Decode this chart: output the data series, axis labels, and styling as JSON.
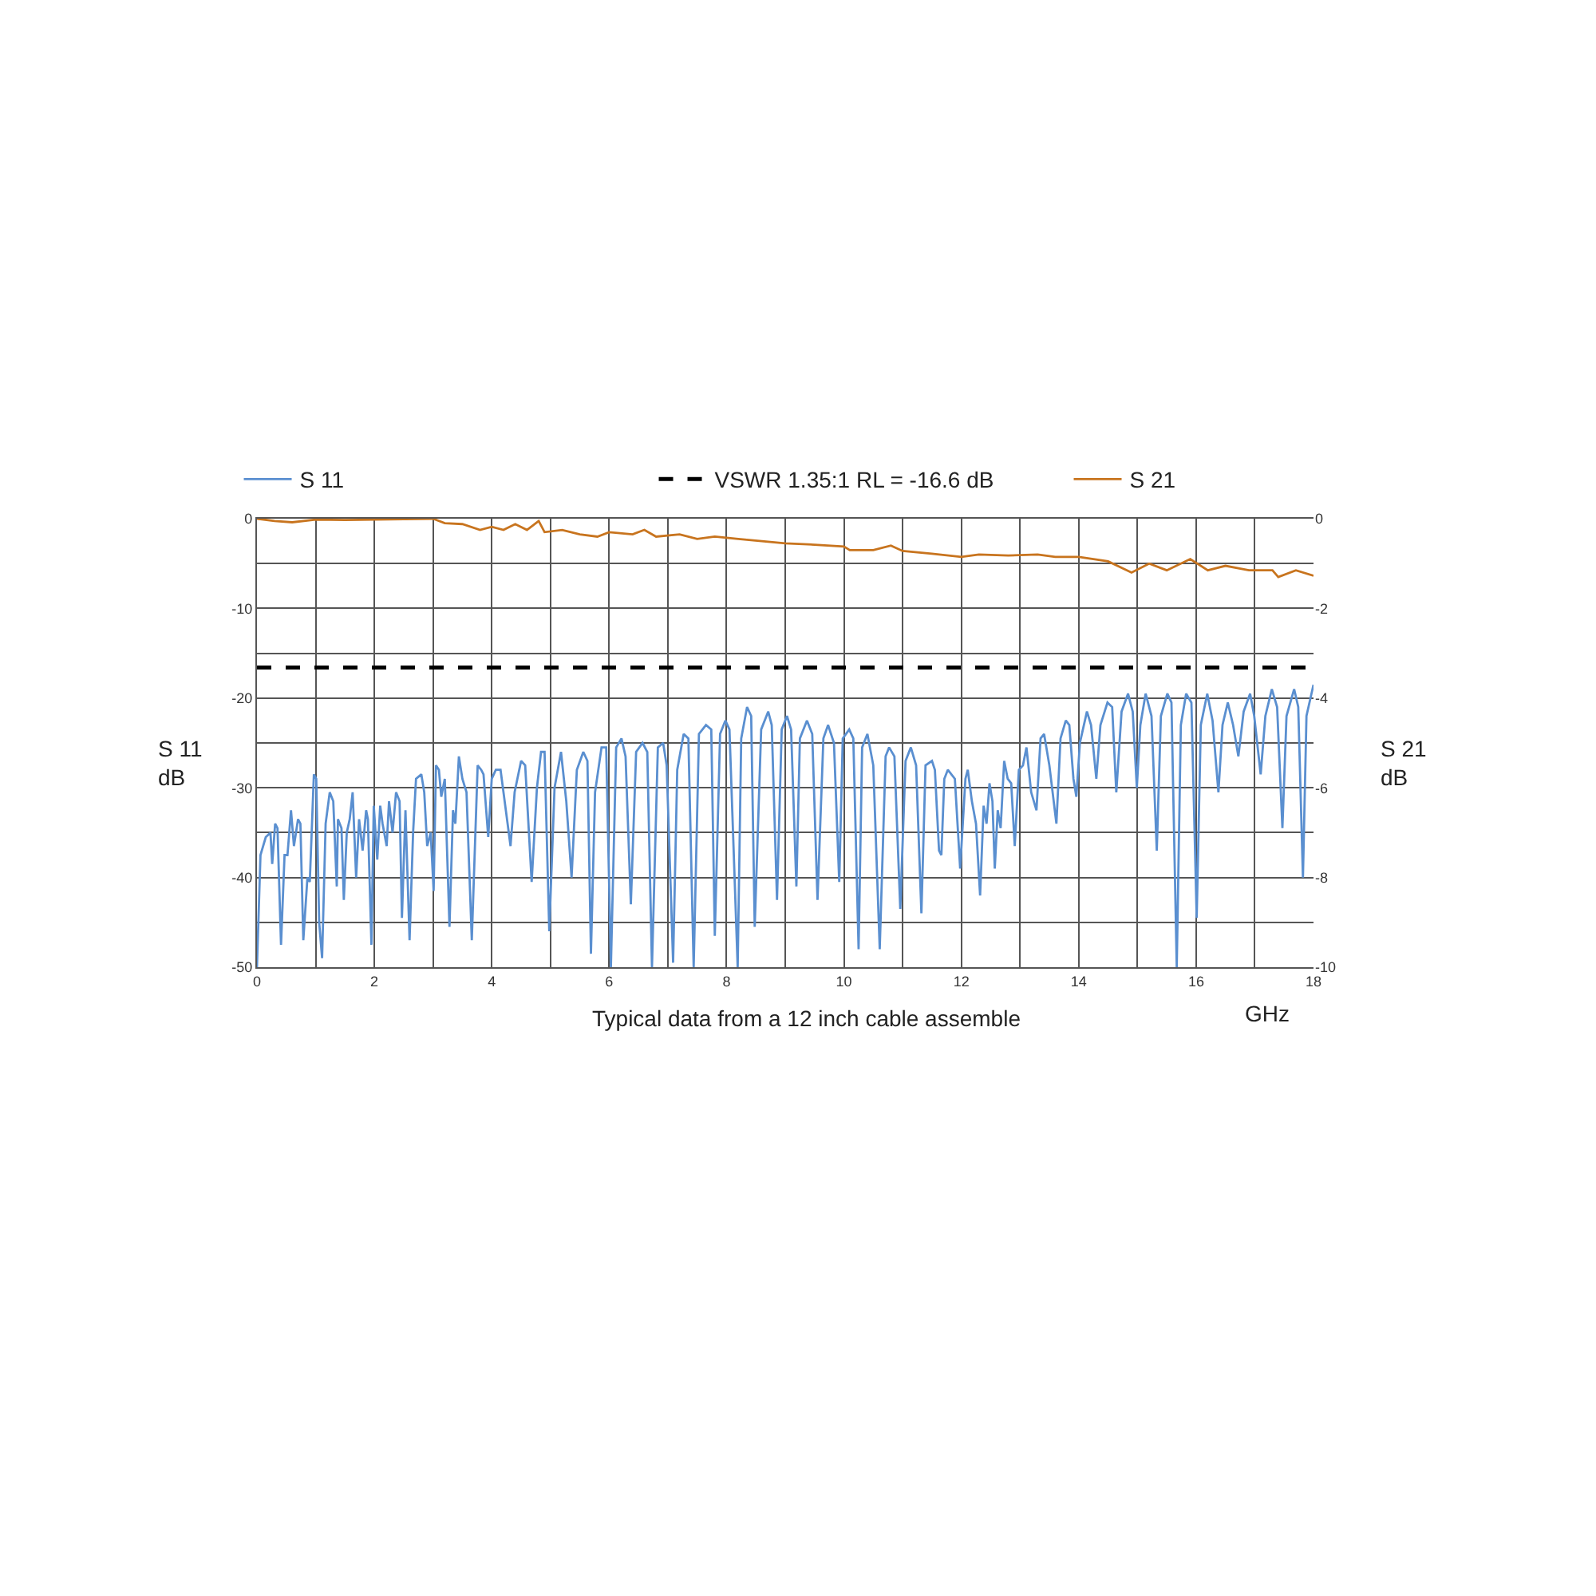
{
  "chart_data": {
    "type": "line",
    "xlabel": "GHz",
    "ylabel": "S 11\ndB",
    "y2label": "S 21\ndB",
    "annotations": [
      "Typical data from a 12 inch cable assemble"
    ],
    "xlim": [
      0,
      18
    ],
    "xticks": [
      0,
      {
        "value": 1,
        "label": null
      },
      2,
      {
        "value": 3,
        "label": null
      },
      4,
      {
        "value": 5,
        "label": null
      },
      6,
      {
        "value": 7,
        "label": null
      },
      8,
      {
        "value": 9,
        "label": null
      },
      10,
      {
        "value": 11,
        "label": null
      },
      12,
      {
        "value": 13,
        "label": null
      },
      14,
      {
        "value": 15,
        "label": null
      },
      16,
      {
        "value": 17,
        "label": null
      },
      18
    ],
    "ylim": [
      -50,
      0
    ],
    "yticks": [
      -50,
      {
        "value": -45,
        "label": null
      },
      -40,
      {
        "value": -35,
        "label": null
      },
      -30,
      {
        "value": -25,
        "label": null
      },
      -20,
      {
        "value": -15,
        "label": null
      },
      -10,
      {
        "value": -5,
        "label": null
      },
      0
    ],
    "y2lim": [
      -10,
      0
    ],
    "y2ticks": [
      -10,
      -8,
      -6,
      -4,
      -2,
      0
    ],
    "grid": true,
    "legend": "top",
    "marker": "none",
    "line_style": "solid",
    "ref_lines": [
      {
        "axis": "y",
        "value": -16.6,
        "label": "VSWR 1.35:1 RL = -16.6 dB",
        "color": "#000000",
        "line_style": "dashed"
      }
    ],
    "series": [
      {
        "name": "S 11",
        "color": "#5a8fd0",
        "x": [
          0,
          0.06,
          0.15,
          0.23,
          0.26,
          0.31,
          0.35,
          0.41,
          0.47,
          0.52,
          0.58,
          0.63,
          0.7,
          0.74,
          0.79,
          0.86,
          0.9,
          0.97,
          1.01,
          1.06,
          1.11,
          1.17,
          1.24,
          1.3,
          1.36,
          1.38,
          1.44,
          1.48,
          1.53,
          1.58,
          1.63,
          1.69,
          1.74,
          1.8,
          1.86,
          1.89,
          1.95,
          1.99,
          2.05,
          2.1,
          2.14,
          2.21,
          2.25,
          2.31,
          2.37,
          2.43,
          2.47,
          2.53,
          2.6,
          2.66,
          2.71,
          2.8,
          2.85,
          2.9,
          2.96,
          3.01,
          3.05,
          3.1,
          3.14,
          3.2,
          3.28,
          3.34,
          3.38,
          3.44,
          3.5,
          3.57,
          3.66,
          3.76,
          3.82,
          3.86,
          3.94,
          4.0,
          4.07,
          4.15,
          4.32,
          4.39,
          4.5,
          4.57,
          4.68,
          4.77,
          4.84,
          4.9,
          4.98,
          5.07,
          5.18,
          5.27,
          5.36,
          5.45,
          5.56,
          5.63,
          5.69,
          5.76,
          5.87,
          5.95,
          6.03,
          6.12,
          6.21,
          6.28,
          6.37,
          6.46,
          6.57,
          6.65,
          6.73,
          6.83,
          6.92,
          6.98,
          7.09,
          7.16,
          7.27,
          7.35,
          7.44,
          7.53,
          7.65,
          7.74,
          7.8,
          7.89,
          7.98,
          8.05,
          8.19,
          8.25,
          8.35,
          8.42,
          8.48,
          8.59,
          8.71,
          8.77,
          8.86,
          8.94,
          9.03,
          9.1,
          9.19,
          9.25,
          9.37,
          9.46,
          9.55,
          9.65,
          9.73,
          9.83,
          9.92,
          9.98,
          10.09,
          10.16,
          10.25,
          10.31,
          10.4,
          10.5,
          10.61,
          10.71,
          10.77,
          10.86,
          10.96,
          11.05,
          11.14,
          11.23,
          11.32,
          11.39,
          11.5,
          11.55,
          11.62,
          11.66,
          11.71,
          11.77,
          11.89,
          11.98,
          12.07,
          12.11,
          12.18,
          12.25,
          12.32,
          12.38,
          12.43,
          12.48,
          12.53,
          12.57,
          12.62,
          12.67,
          12.73,
          12.79,
          12.85,
          12.91,
          12.98,
          13.05,
          13.11,
          13.19,
          13.28,
          13.35,
          13.41,
          13.5,
          13.62,
          13.69,
          13.78,
          13.84,
          13.91,
          13.96,
          14.02,
          14.14,
          14.21,
          14.3,
          14.37,
          14.49,
          14.57,
          14.64,
          14.73,
          14.84,
          14.92,
          14.99,
          15.05,
          15.14,
          15.24,
          15.33,
          15.4,
          15.51,
          15.58,
          15.67,
          15.74,
          15.83,
          15.92,
          16.01,
          16.08,
          16.19,
          16.28,
          16.38,
          16.45,
          16.54,
          16.63,
          16.72,
          16.81,
          16.92,
          16.99,
          17.1,
          17.18,
          17.29,
          17.38,
          17.47,
          17.54,
          17.67,
          17.74,
          17.82,
          17.88,
          18
        ],
        "values": [
          -50,
          -37.5,
          -35.5,
          -35,
          -38.5,
          -34,
          -34.5,
          -47.5,
          -37.5,
          -37.5,
          -32.5,
          -36.5,
          -33.5,
          -34,
          -47,
          -40,
          -40.5,
          -28.5,
          -29,
          -45,
          -49,
          -34,
          -30.5,
          -31.5,
          -41,
          -33.5,
          -34.5,
          -42.5,
          -35,
          -33.5,
          -30.5,
          -40,
          -33.5,
          -37,
          -32.5,
          -33.5,
          -47.5,
          -32,
          -38,
          -32,
          -34,
          -36.5,
          -31.5,
          -35,
          -30.5,
          -31.5,
          -44.5,
          -32.5,
          -47,
          -35,
          -29,
          -28.5,
          -30.5,
          -36.5,
          -35,
          -41.5,
          -27.5,
          -28,
          -31,
          -29,
          -45.5,
          -32.5,
          -34,
          -26.5,
          -29,
          -30.5,
          -47,
          -27.5,
          -28,
          -28.5,
          -35.5,
          -29,
          -28,
          -28,
          -36.5,
          -30.5,
          -27,
          -27.5,
          -40.5,
          -30,
          -26,
          -26,
          -46,
          -30,
          -26,
          -31.5,
          -40,
          -28,
          -26,
          -27,
          -48.5,
          -30.5,
          -25.5,
          -25.5,
          -50,
          -25.5,
          -24.5,
          -26.5,
          -43,
          -26,
          -25,
          -26,
          -50,
          -25.5,
          -25,
          -27.5,
          -49.5,
          -28,
          -24,
          -24.5,
          -50,
          -24,
          -23,
          -23.5,
          -46.5,
          -24,
          -22.5,
          -23.5,
          -50,
          -24.5,
          -21,
          -22,
          -45.5,
          -23.5,
          -21.5,
          -23,
          -42.5,
          -23.5,
          -22,
          -23.5,
          -41,
          -24.5,
          -22.5,
          -24,
          -42.5,
          -24.5,
          -23,
          -25,
          -40.5,
          -24.5,
          -23.5,
          -24.5,
          -48,
          -25.5,
          -24,
          -27.5,
          -48,
          -26.5,
          -25.5,
          -26.5,
          -43.5,
          -27,
          -25.5,
          -27.5,
          -44,
          -27.5,
          -27,
          -28,
          -37,
          -37.5,
          -29,
          -28,
          -29,
          -39,
          -29,
          -28,
          -31.5,
          -34,
          -42,
          -32,
          -34,
          -29.5,
          -31.5,
          -39,
          -32.5,
          -34.5,
          -27,
          -29,
          -29.5,
          -36.5,
          -28,
          -27.5,
          -25.5,
          -30.5,
          -32.5,
          -24.5,
          -24,
          -27.5,
          -34,
          -24.5,
          -22.5,
          -23,
          -29,
          -31,
          -25,
          -21.5,
          -23,
          -29,
          -23,
          -20.5,
          -21,
          -30.5,
          -21.5,
          -19.5,
          -21.5,
          -30,
          -23,
          -19.5,
          -22,
          -37,
          -22,
          -19.5,
          -20.5,
          -50,
          -23,
          -19.5,
          -20.5,
          -44.5,
          -23,
          -19.5,
          -22.5,
          -30.5,
          -23,
          -20.5,
          -23,
          -26.5,
          -21.5,
          -19.5,
          -22,
          -28.5,
          -22,
          -19,
          -21,
          -34.5,
          -22,
          -19,
          -21,
          -40,
          -22,
          -18.5
        ]
      },
      {
        "name": "S 21",
        "color": "#c8741e",
        "axis": "y2",
        "x": [
          0,
          0.3,
          0.6,
          1,
          1.5,
          2,
          2.5,
          3,
          3.2,
          3.5,
          3.8,
          4,
          4.2,
          4.4,
          4.6,
          4.8,
          4.9,
          5.2,
          5.5,
          5.8,
          6,
          6.4,
          6.6,
          6.8,
          7.2,
          7.5,
          7.8,
          8.2,
          8.6,
          9,
          9.5,
          10,
          10.1,
          10.5,
          10.8,
          11,
          11.5,
          12,
          12.3,
          12.8,
          13.3,
          13.6,
          14,
          14.5,
          14.9,
          15.2,
          15.5,
          15.9,
          16.2,
          16.5,
          16.9,
          17.3,
          17.4,
          17.7,
          18
        ],
        "values": [
          0,
          -0.05,
          -0.08,
          -0.02,
          -0.03,
          -0.02,
          -0.01,
          0,
          -0.1,
          -0.12,
          -0.25,
          -0.18,
          -0.25,
          -0.12,
          -0.25,
          -0.05,
          -0.3,
          -0.25,
          -0.35,
          -0.4,
          -0.3,
          -0.35,
          -0.25,
          -0.4,
          -0.35,
          -0.45,
          -0.4,
          -0.45,
          -0.5,
          -0.55,
          -0.58,
          -0.62,
          -0.7,
          -0.7,
          -0.6,
          -0.72,
          -0.78,
          -0.85,
          -0.8,
          -0.82,
          -0.8,
          -0.85,
          -0.85,
          -0.95,
          -1.2,
          -1.0,
          -1.15,
          -0.9,
          -1.15,
          -1.05,
          -1.15,
          -1.15,
          -1.3,
          -1.15,
          -1.27
        ]
      }
    ]
  }
}
